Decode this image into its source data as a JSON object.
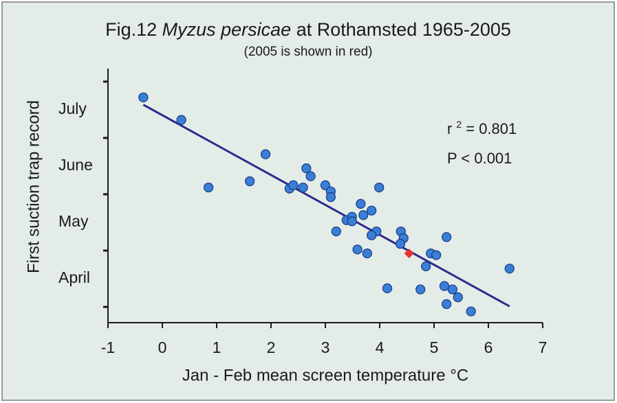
{
  "chart_data": {
    "type": "scatter",
    "title": {
      "prefix": "Fig.12 ",
      "species": "Myzus persicae",
      "suffix": " at Rothamsted 1965-2005"
    },
    "subtitle": "(2005 is shown in red)",
    "x_label": "Jan - Feb mean screen temperature °C",
    "y_label": "First suction trap record",
    "xlim": [
      -1,
      7
    ],
    "xticks": [
      -1,
      0,
      1,
      2,
      3,
      4,
      5,
      6,
      7
    ],
    "ylim": [
      3.72,
      8.23
    ],
    "ytick_marks": [
      4,
      5,
      6,
      7,
      8
    ],
    "yticks": [
      {
        "value": 4.5,
        "label": "April"
      },
      {
        "value": 5.5,
        "label": "May"
      },
      {
        "value": 6.5,
        "label": "June"
      },
      {
        "value": 7.5,
        "label": "July"
      }
    ],
    "annotation": {
      "r": "r",
      "sup": "2",
      "rest": " = 0.801",
      "p": "P < 0.001"
    },
    "fit_line": {
      "color": "#2a2a8c",
      "x": [
        -0.35,
        6.39
      ],
      "values": [
        7.59,
        4.01
      ]
    },
    "series": [
      {
        "color": "#3a7fd6",
        "marker": "circle",
        "x": [
          -0.35,
          0.35,
          0.85,
          1.61,
          1.9,
          2.34,
          2.41,
          2.59,
          2.65,
          2.73,
          3.0,
          3.1,
          3.1,
          3.99,
          3.2,
          3.39,
          3.49,
          3.49,
          3.65,
          3.7,
          3.85,
          3.94,
          3.85,
          3.59,
          3.77,
          4.39,
          4.44,
          4.38,
          5.23,
          4.94,
          5.04,
          4.85,
          6.39,
          4.14,
          4.75,
          5.19,
          5.34,
          5.44,
          5.23,
          5.68
        ],
        "values": [
          7.72,
          7.32,
          6.12,
          6.23,
          6.71,
          6.1,
          6.16,
          6.12,
          6.46,
          6.32,
          6.16,
          6.05,
          5.95,
          6.12,
          5.34,
          5.54,
          5.6,
          5.52,
          5.83,
          5.63,
          5.71,
          5.34,
          5.27,
          5.02,
          4.95,
          5.34,
          5.22,
          5.12,
          5.24,
          4.95,
          4.92,
          4.72,
          4.68,
          4.33,
          4.31,
          4.37,
          4.31,
          4.17,
          4.05,
          3.92
        ]
      },
      {
        "color": "#e8322c",
        "marker": "diamond",
        "x": [
          4.54
        ],
        "values": [
          4.95
        ]
      }
    ]
  }
}
